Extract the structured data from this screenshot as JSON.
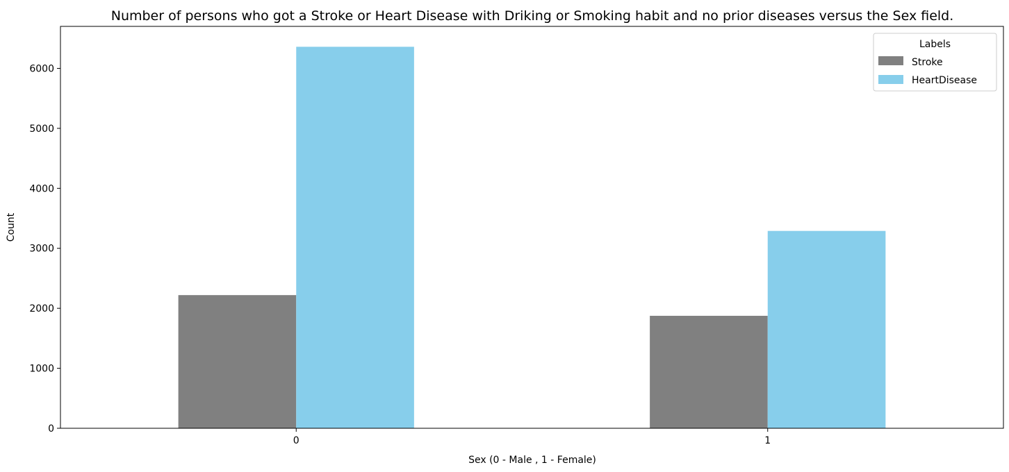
{
  "chart_data": {
    "type": "bar",
    "title": "Number of persons who got a Stroke or Heart Disease with Driking or Smoking habit and no prior diseases versus the Sex field.",
    "xlabel": "Sex (0 - Male , 1 - Female)",
    "ylabel": "Count",
    "categories": [
      "0",
      "1"
    ],
    "series": [
      {
        "name": "Stroke",
        "values": [
          2220,
          1875
        ],
        "color": "#808080"
      },
      {
        "name": "HeartDisease",
        "values": [
          6360,
          3290
        ],
        "color": "#87ceeb"
      }
    ],
    "ylim": [
      0,
      6700
    ],
    "yticks": [
      0,
      1000,
      2000,
      3000,
      4000,
      5000,
      6000
    ],
    "grid": false,
    "legend": {
      "title": "Labels",
      "placement": "top-right"
    }
  }
}
